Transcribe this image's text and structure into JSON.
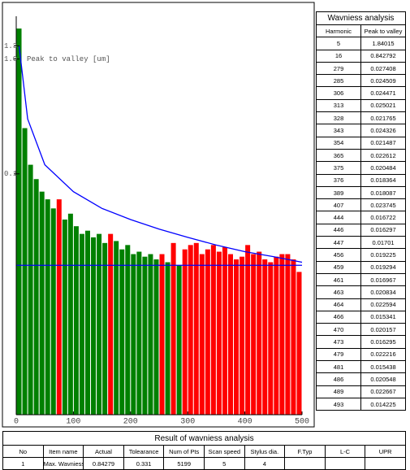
{
  "chart_data": {
    "type": "bar",
    "y_label": "Peak to valley [um]",
    "log_scale": true,
    "xlim": [
      0,
      500
    ],
    "xticks": [
      0,
      100,
      200,
      300,
      400,
      500
    ],
    "ylim": [
      0.0008,
      2
    ],
    "yticks": [
      {
        "value": 1.3,
        "label": "1.3"
      },
      {
        "value": 1,
        "label": "1.0"
      },
      {
        "value": 0.1,
        "label": "0.1"
      }
    ],
    "series": [
      {
        "color": "#008000",
        "x": [
          5,
          15,
          25,
          35,
          45,
          55,
          65,
          85,
          95,
          105,
          115,
          125,
          135,
          145,
          155,
          175,
          185,
          195,
          205,
          215,
          225,
          235,
          245,
          265,
          285
        ],
        "values": [
          1.84,
          0.25,
          0.12,
          0.09,
          0.07,
          0.06,
          0.05,
          0.04,
          0.045,
          0.035,
          0.03,
          0.032,
          0.028,
          0.03,
          0.025,
          0.026,
          0.022,
          0.024,
          0.02,
          0.021,
          0.019,
          0.02,
          0.018,
          0.017,
          0.016
        ]
      },
      {
        "color": "#ff0000",
        "x": [
          75,
          165,
          255,
          275,
          295,
          305,
          315,
          325,
          335,
          345,
          355,
          365,
          375,
          385,
          395,
          405,
          415,
          425,
          435,
          445,
          455,
          465,
          475,
          485,
          495
        ],
        "values": [
          0.06,
          0.03,
          0.02,
          0.025,
          0.022,
          0.024,
          0.025,
          0.02,
          0.022,
          0.024,
          0.021,
          0.023,
          0.02,
          0.018,
          0.019,
          0.024,
          0.02,
          0.021,
          0.018,
          0.017,
          0.019,
          0.02,
          0.02,
          0.018,
          0.014
        ]
      }
    ],
    "curve": {
      "color": "#0000ff",
      "x": [
        5,
        20,
        50,
        100,
        150,
        200,
        250,
        300,
        350,
        400,
        450,
        500
      ],
      "values": [
        1.3,
        0.3,
        0.12,
        0.07,
        0.05,
        0.04,
        0.033,
        0.028,
        0.024,
        0.021,
        0.019,
        0.017
      ]
    },
    "reference_line": 0.016,
    "reference_color": "#0000ff"
  },
  "wavniess_table": {
    "title": "Wavniess analysis",
    "header": [
      "Harmonic",
      "Peak to valley"
    ],
    "rows": [
      [
        5,
        1.84015
      ],
      [
        16,
        0.842792
      ],
      [
        279,
        0.027408
      ],
      [
        285,
        0.024509
      ],
      [
        306,
        0.024471
      ],
      [
        313,
        0.025021
      ],
      [
        328,
        0.021765
      ],
      [
        343,
        0.024326
      ],
      [
        354,
        0.021487
      ],
      [
        365,
        0.022612
      ],
      [
        375,
        0.020484
      ],
      [
        376,
        0.018364
      ],
      [
        389,
        0.018087
      ],
      [
        407,
        0.023745
      ],
      [
        444,
        0.016722
      ],
      [
        446,
        0.016297
      ],
      [
        447,
        0.01701
      ],
      [
        456,
        0.019225
      ],
      [
        459,
        0.019294
      ],
      [
        461,
        0.016967
      ],
      [
        463,
        0.020834
      ],
      [
        464,
        0.022594
      ],
      [
        466,
        0.015341
      ],
      [
        470,
        0.020157
      ],
      [
        473,
        0.016295
      ],
      [
        479,
        0.022216
      ],
      [
        481,
        0.015438
      ],
      [
        486,
        0.020548
      ],
      [
        489,
        0.022667
      ],
      [
        493,
        0.014225
      ]
    ]
  },
  "result_table": {
    "title": "Result of wavniess analysis",
    "header": [
      "No",
      "Item name",
      "Actual",
      "Tolearance",
      "Num of Pts",
      "Scan speed",
      "Stylus dia.",
      "F.Typ",
      "L-C",
      "UPR"
    ],
    "row": [
      1,
      "Max. Wavniess",
      0.84279,
      0.331,
      5199,
      5,
      4
    ]
  }
}
